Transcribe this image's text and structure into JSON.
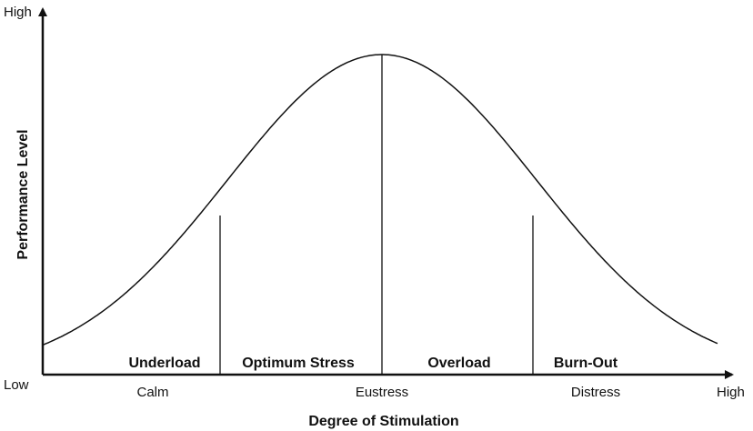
{
  "diagram": {
    "y_axis": {
      "title": "Performance Level",
      "top_label": "High",
      "bottom_label": "Low"
    },
    "x_axis": {
      "title": "Degree of Stimulation",
      "end_label": "High"
    },
    "x_categories": [
      {
        "id": "calm",
        "label": "Calm"
      },
      {
        "id": "eustress",
        "label": "Eustress"
      },
      {
        "id": "distress",
        "label": "Distress"
      }
    ],
    "regions": [
      {
        "id": "underload",
        "label": "Underload"
      },
      {
        "id": "optimum",
        "label": "Optimum Stress"
      },
      {
        "id": "overload",
        "label": "Overload"
      },
      {
        "id": "burnout",
        "label": "Burn-Out"
      }
    ],
    "curve": {
      "shape": "bell",
      "peak_label": "Eustress"
    },
    "colors": {
      "line": "#111111",
      "background": "#ffffff"
    }
  }
}
